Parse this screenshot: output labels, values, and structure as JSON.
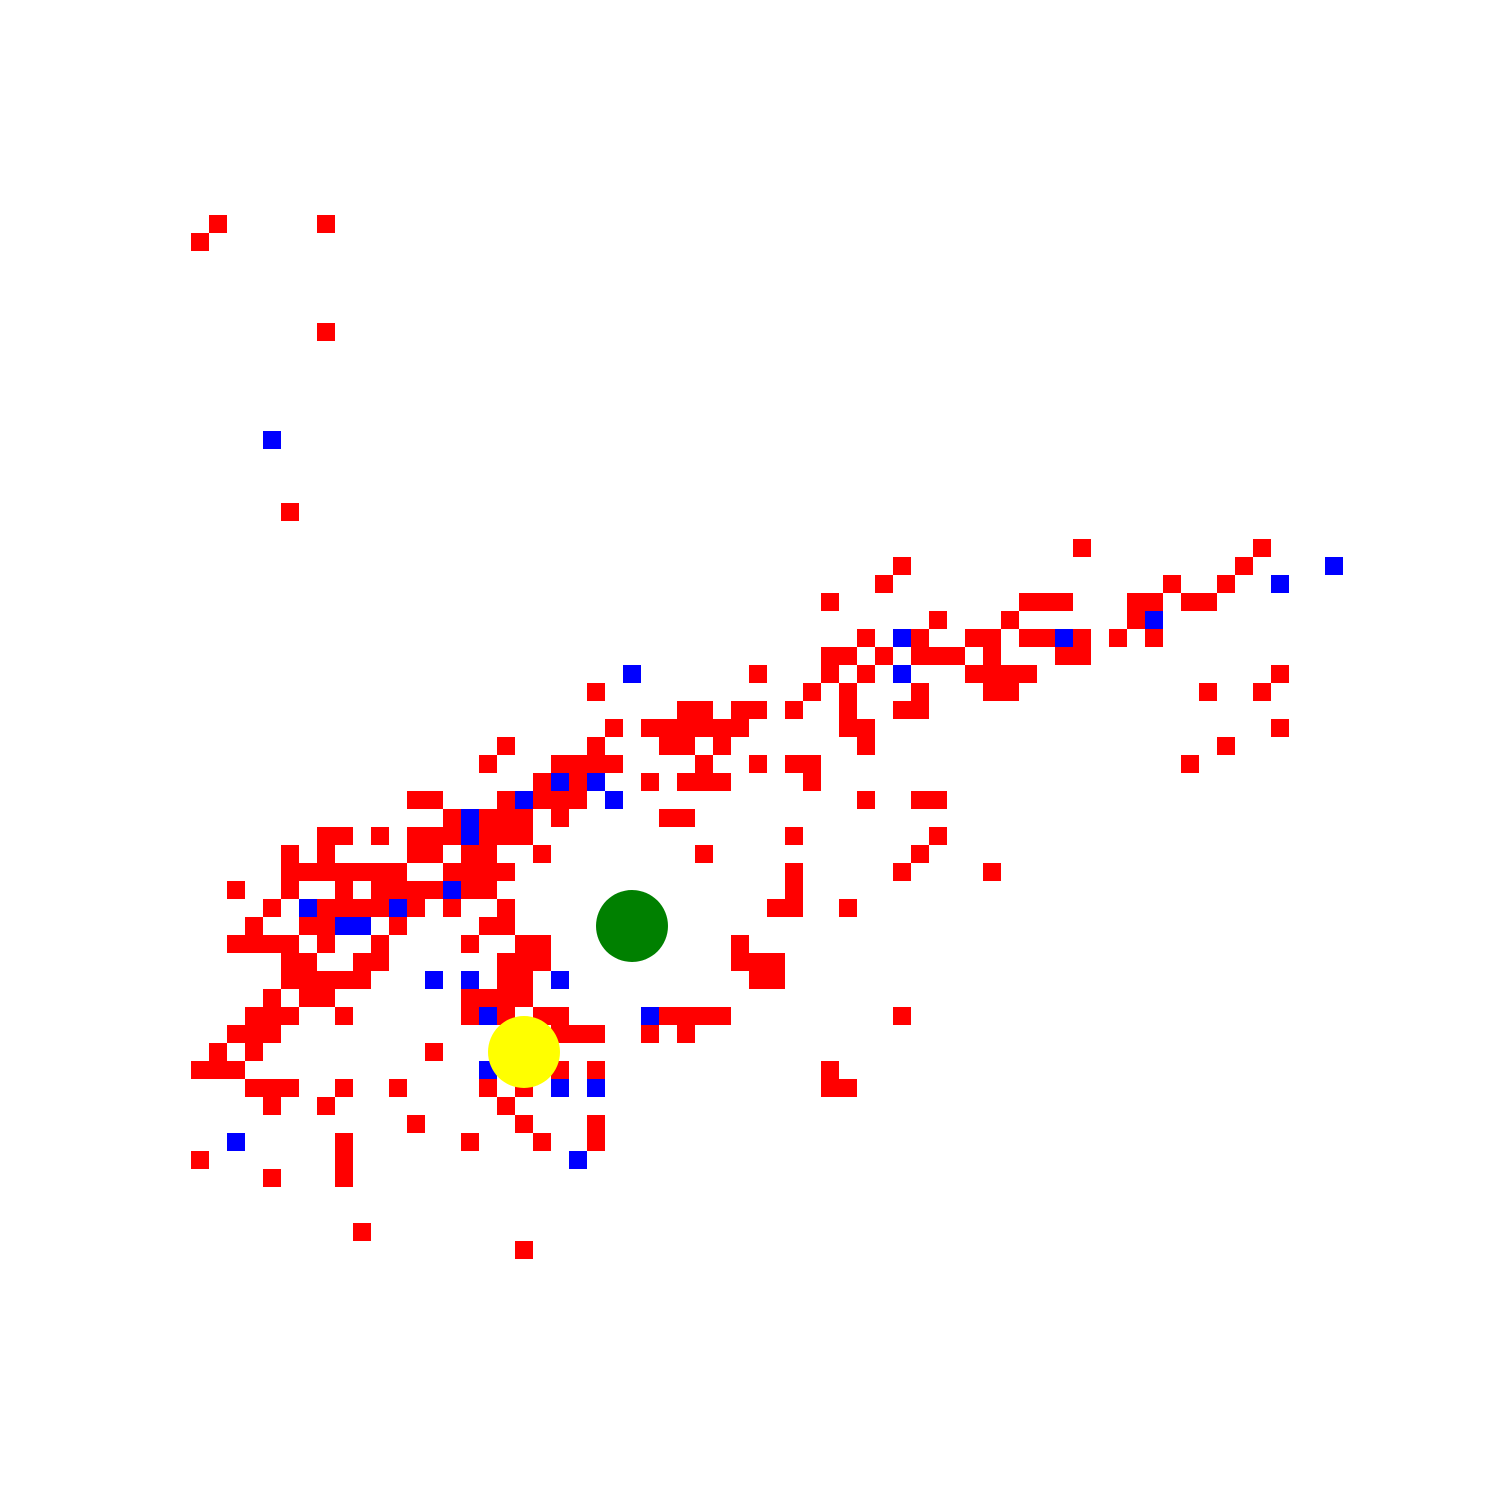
{
  "grid": {
    "cell_size": 18,
    "colors": {
      "red": "#ff0000",
      "blue": "#0000ff",
      "agent": "#008000",
      "goal": "#ffff00"
    },
    "cells": [
      {
        "row": 0,
        "red": [
          1,
          7
        ],
        "blue": []
      },
      {
        "row": 1,
        "red": [
          0
        ],
        "blue": []
      },
      {
        "row": 6,
        "red": [
          7
        ],
        "blue": []
      },
      {
        "row": 12,
        "red": [],
        "blue": [
          4
        ]
      },
      {
        "row": 16,
        "red": [
          5
        ],
        "blue": []
      },
      {
        "row": 18,
        "red": [
          49,
          59
        ],
        "blue": []
      },
      {
        "row": 19,
        "red": [
          39,
          58
        ],
        "blue": [
          63
        ]
      },
      {
        "row": 20,
        "red": [
          38,
          54,
          57
        ],
        "blue": [
          60
        ]
      },
      {
        "row": 21,
        "red": [
          35,
          46,
          47,
          48,
          52,
          53,
          55,
          56
        ],
        "blue": []
      },
      {
        "row": 22,
        "red": [
          41,
          45,
          52
        ],
        "blue": [
          53
        ]
      },
      {
        "row": 23,
        "red": [
          37,
          40,
          43,
          44,
          46,
          47,
          49,
          51,
          53
        ],
        "blue": [
          39,
          48
        ]
      },
      {
        "row": 24,
        "red": [
          35,
          36,
          38,
          40,
          41,
          42,
          44,
          48,
          49
        ],
        "blue": []
      },
      {
        "row": 25,
        "red": [
          31,
          35,
          37,
          43,
          44,
          45,
          46,
          60
        ],
        "blue": [
          24,
          39
        ]
      },
      {
        "row": 26,
        "red": [
          22,
          34,
          36,
          40,
          44,
          45,
          56,
          59
        ],
        "blue": []
      },
      {
        "row": 27,
        "red": [
          27,
          28,
          30,
          31,
          33,
          36,
          39,
          40
        ],
        "blue": []
      },
      {
        "row": 28,
        "red": [
          23,
          25,
          26,
          27,
          28,
          29,
          30,
          36,
          37,
          60
        ],
        "blue": []
      },
      {
        "row": 29,
        "red": [
          17,
          22,
          26,
          27,
          29,
          37,
          57
        ],
        "blue": []
      },
      {
        "row": 30,
        "red": [
          16,
          20,
          21,
          22,
          23,
          28,
          31,
          33,
          34,
          55
        ],
        "blue": []
      },
      {
        "row": 31,
        "red": [
          19,
          21,
          25,
          27,
          28,
          29,
          34
        ],
        "blue": [
          20,
          22
        ]
      },
      {
        "row": 32,
        "red": [
          12,
          13,
          17,
          19,
          20,
          21,
          37,
          40,
          41
        ],
        "blue": [
          18,
          23
        ]
      },
      {
        "row": 33,
        "red": [
          14,
          16,
          17,
          18,
          20,
          26,
          27
        ],
        "blue": [
          15
        ]
      },
      {
        "row": 34,
        "red": [
          7,
          8,
          10,
          12,
          13,
          14,
          16,
          17,
          18,
          33,
          41
        ],
        "blue": [
          15
        ]
      },
      {
        "row": 35,
        "red": [
          5,
          7,
          12,
          13,
          15,
          16,
          19,
          28,
          40
        ],
        "blue": []
      },
      {
        "row": 36,
        "red": [
          5,
          6,
          7,
          8,
          9,
          10,
          11,
          14,
          15,
          16,
          17,
          33,
          39,
          44
        ],
        "blue": []
      },
      {
        "row": 37,
        "red": [
          2,
          5,
          8,
          10,
          11,
          12,
          13,
          15,
          16,
          33
        ],
        "blue": [
          14
        ]
      },
      {
        "row": 38,
        "red": [
          4,
          7,
          8,
          9,
          10,
          12,
          14,
          17,
          32,
          33,
          36
        ],
        "blue": [
          6,
          11
        ]
      },
      {
        "row": 39,
        "red": [
          3,
          6,
          7,
          11,
          16,
          17
        ],
        "blue": [
          8,
          9
        ]
      },
      {
        "row": 40,
        "red": [
          2,
          3,
          4,
          5,
          7,
          10,
          15,
          18,
          19,
          30
        ],
        "blue": []
      },
      {
        "row": 41,
        "red": [
          5,
          6,
          9,
          10,
          17,
          18,
          19,
          30,
          31,
          32
        ],
        "blue": []
      },
      {
        "row": 42,
        "red": [
          5,
          6,
          7,
          8,
          9,
          17,
          18,
          31,
          32
        ],
        "blue": [
          13,
          15,
          20
        ]
      },
      {
        "row": 43,
        "red": [
          4,
          6,
          7,
          15,
          16,
          17,
          18
        ],
        "blue": []
      },
      {
        "row": 44,
        "red": [
          3,
          4,
          5,
          8,
          15,
          17,
          19,
          20,
          26,
          27,
          28,
          29,
          39
        ],
        "blue": [
          16,
          25
        ]
      },
      {
        "row": 45,
        "red": [
          2,
          3,
          4,
          20,
          21,
          22,
          25,
          27
        ],
        "blue": []
      },
      {
        "row": 46,
        "red": [
          1,
          3,
          13
        ],
        "blue": []
      },
      {
        "row": 47,
        "red": [
          0,
          1,
          2,
          20,
          22,
          35
        ],
        "blue": [
          16
        ]
      },
      {
        "row": 48,
        "red": [
          3,
          4,
          5,
          8,
          11,
          16,
          18,
          35,
          36
        ],
        "blue": [
          20,
          22
        ]
      },
      {
        "row": 49,
        "red": [
          4,
          7,
          17
        ],
        "blue": []
      },
      {
        "row": 50,
        "red": [
          12,
          18,
          22
        ],
        "blue": []
      },
      {
        "row": 51,
        "red": [
          8,
          15,
          19,
          22
        ],
        "blue": [
          2
        ]
      },
      {
        "row": 52,
        "red": [
          0,
          8
        ],
        "blue": [
          21
        ]
      },
      {
        "row": 53,
        "red": [
          4,
          8
        ],
        "blue": []
      },
      {
        "row": 56,
        "red": [
          9
        ],
        "blue": []
      },
      {
        "row": 57,
        "red": [
          18
        ],
        "blue": []
      }
    ],
    "agent": [
      24,
      39
    ],
    "goal": [
      18,
      46
    ]
  }
}
